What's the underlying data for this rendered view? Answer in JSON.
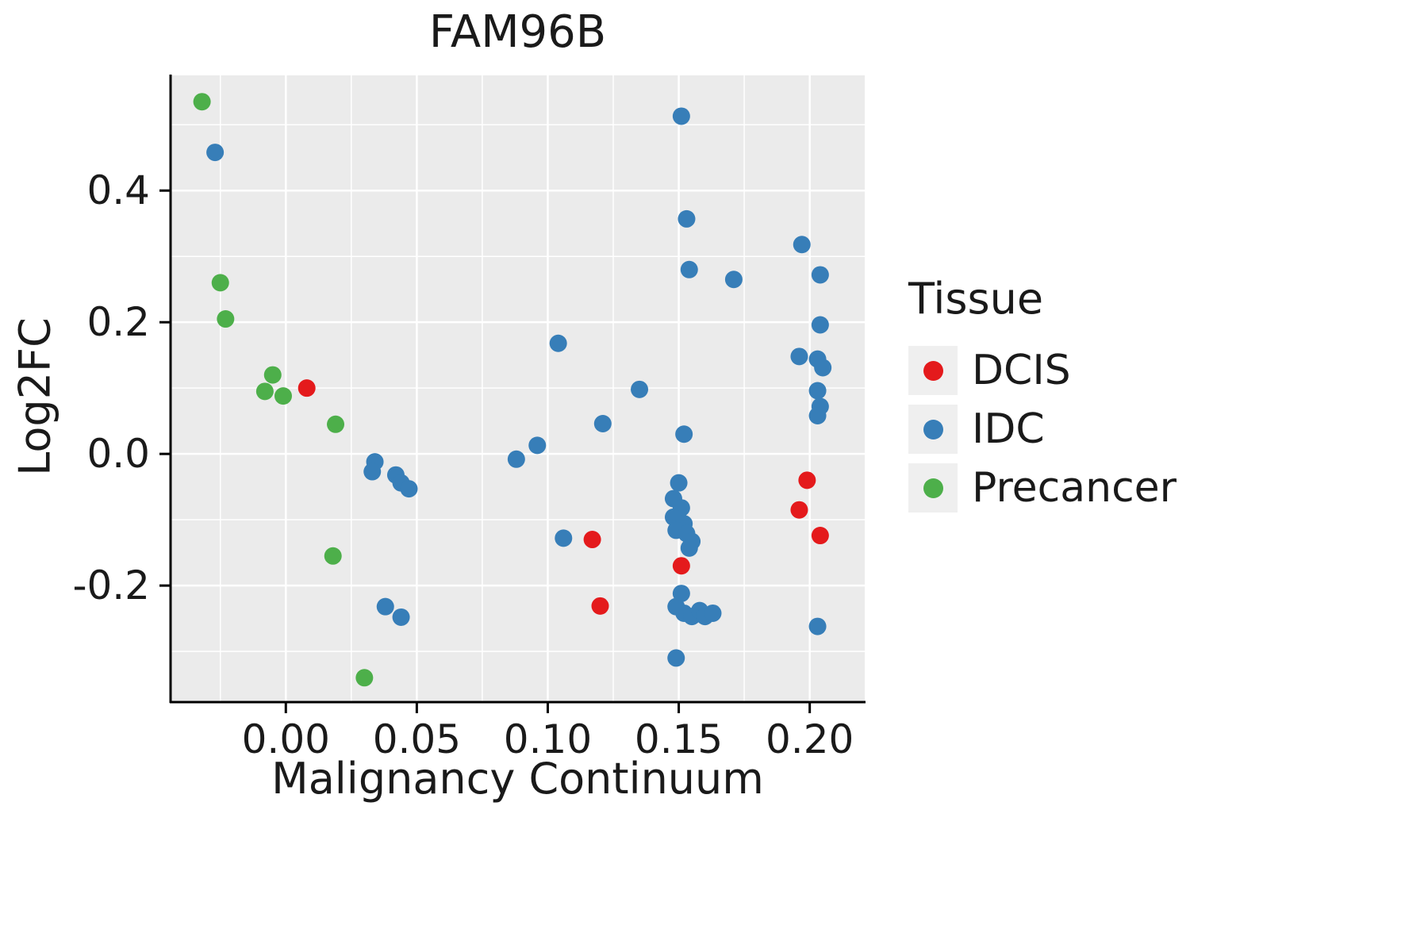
{
  "chart": {
    "title": "FAM96B",
    "x_label": "Malignancy Continuum",
    "y_label": "Log2FC"
  },
  "legend": {
    "title": "Tissue",
    "items": [
      {
        "label": "DCIS",
        "color": "#E41A1C"
      },
      {
        "label": "IDC",
        "color": "#377EB8"
      },
      {
        "label": "Precancer",
        "color": "#4DAF4A"
      }
    ]
  },
  "chart_data": {
    "type": "scatter",
    "title": "FAM96B",
    "xlabel": "Malignancy Continuum",
    "ylabel": "Log2FC",
    "xlim": [
      -0.044,
      0.221
    ],
    "ylim": [
      -0.377,
      0.575
    ],
    "x_ticks": {
      "values": [
        0.0,
        0.05,
        0.1,
        0.15,
        0.2
      ],
      "labels": [
        "0.00",
        "0.05",
        "0.10",
        "0.15",
        "0.20"
      ]
    },
    "x_minor_ticks": [
      -0.025,
      0.025,
      0.075,
      0.125,
      0.175
    ],
    "y_ticks": {
      "values": [
        -0.2,
        0.0,
        0.2,
        0.4
      ],
      "labels": [
        "-0.2",
        "0.0",
        "0.2",
        "0.4"
      ]
    },
    "y_minor_ticks": [
      -0.3,
      -0.1,
      0.1,
      0.3,
      0.5
    ],
    "panel_bg": "#EBEBEB",
    "grid_color": "#FFFFFF",
    "point_radius": 11,
    "grid_on": true,
    "legend_position": "right",
    "series": [
      {
        "name": "DCIS",
        "color": "#E41A1C",
        "points": [
          [
            0.008,
            0.1
          ],
          [
            0.117,
            -0.13
          ],
          [
            0.12,
            -0.231
          ],
          [
            0.151,
            -0.17
          ],
          [
            0.199,
            -0.04
          ],
          [
            0.196,
            -0.085
          ],
          [
            0.204,
            -0.124
          ]
        ]
      },
      {
        "name": "IDC",
        "color": "#377EB8",
        "points": [
          [
            -0.027,
            0.458
          ],
          [
            0.034,
            -0.012
          ],
          [
            0.033,
            -0.027
          ],
          [
            0.042,
            -0.032
          ],
          [
            0.044,
            -0.044
          ],
          [
            0.047,
            -0.053
          ],
          [
            0.038,
            -0.232
          ],
          [
            0.044,
            -0.248
          ],
          [
            0.088,
            -0.008
          ],
          [
            0.096,
            0.013
          ],
          [
            0.104,
            0.168
          ],
          [
            0.106,
            -0.128
          ],
          [
            0.121,
            0.046
          ],
          [
            0.135,
            0.098
          ],
          [
            0.151,
            0.513
          ],
          [
            0.153,
            0.357
          ],
          [
            0.154,
            0.28
          ],
          [
            0.171,
            0.265
          ],
          [
            0.152,
            0.03
          ],
          [
            0.15,
            -0.044
          ],
          [
            0.148,
            -0.068
          ],
          [
            0.151,
            -0.082
          ],
          [
            0.148,
            -0.096
          ],
          [
            0.152,
            -0.106
          ],
          [
            0.149,
            -0.116
          ],
          [
            0.153,
            -0.121
          ],
          [
            0.155,
            -0.133
          ],
          [
            0.154,
            -0.143
          ],
          [
            0.151,
            -0.212
          ],
          [
            0.149,
            -0.232
          ],
          [
            0.152,
            -0.242
          ],
          [
            0.155,
            -0.247
          ],
          [
            0.158,
            -0.238
          ],
          [
            0.16,
            -0.247
          ],
          [
            0.163,
            -0.242
          ],
          [
            0.149,
            -0.31
          ],
          [
            0.197,
            0.318
          ],
          [
            0.204,
            0.272
          ],
          [
            0.204,
            0.196
          ],
          [
            0.196,
            0.148
          ],
          [
            0.203,
            0.144
          ],
          [
            0.205,
            0.131
          ],
          [
            0.203,
            0.096
          ],
          [
            0.204,
            0.072
          ],
          [
            0.203,
            0.058
          ],
          [
            0.203,
            -0.262
          ]
        ]
      },
      {
        "name": "Precancer",
        "color": "#4DAF4A",
        "points": [
          [
            -0.032,
            0.535
          ],
          [
            -0.025,
            0.26
          ],
          [
            -0.023,
            0.205
          ],
          [
            -0.005,
            0.12
          ],
          [
            -0.008,
            0.095
          ],
          [
            -0.001,
            0.088
          ],
          [
            0.019,
            0.045
          ],
          [
            0.018,
            -0.155
          ],
          [
            0.03,
            -0.34
          ]
        ]
      }
    ]
  }
}
